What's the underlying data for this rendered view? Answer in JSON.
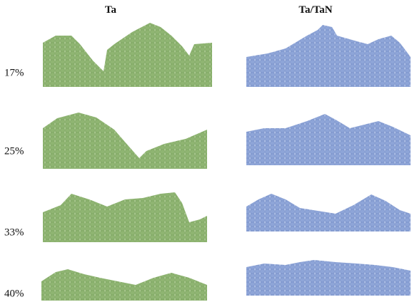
{
  "columns": [
    "Ta",
    "Ta/TaN"
  ],
  "rows": [
    "17%",
    "25%",
    "33%",
    "40%"
  ]
}
